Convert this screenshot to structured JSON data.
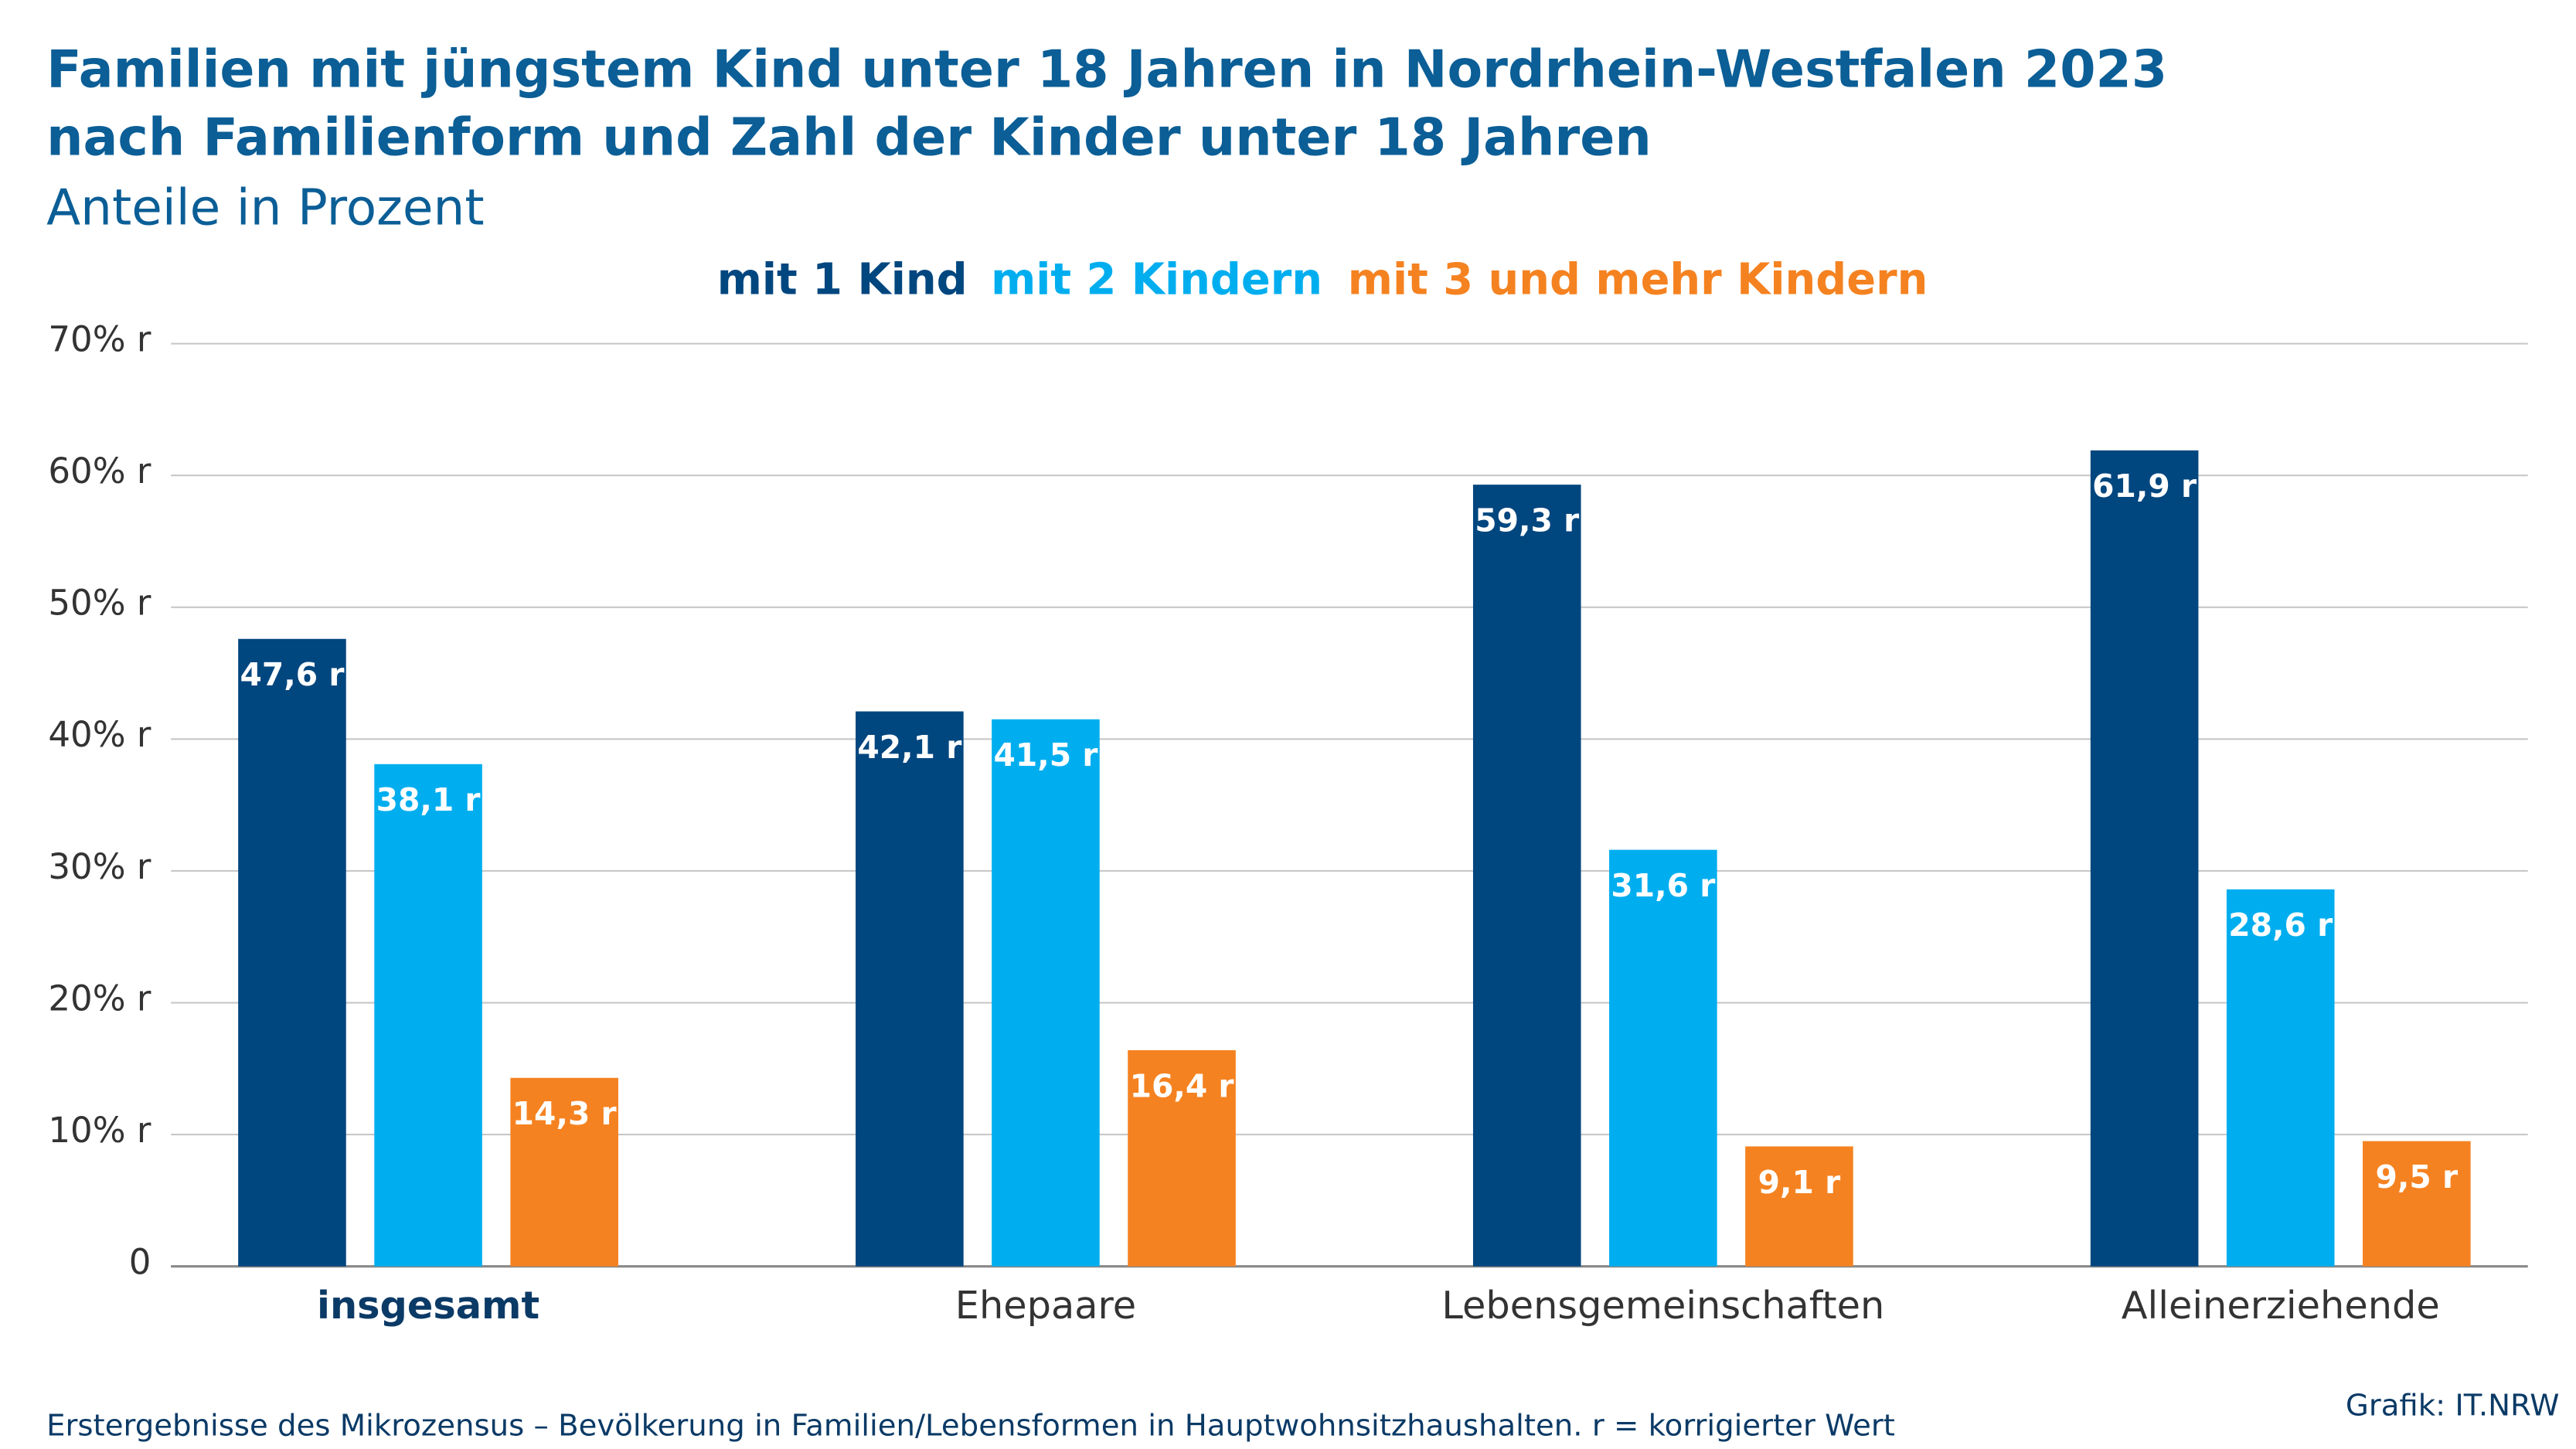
{
  "chart_data": {
    "type": "bar",
    "title": [
      "Familien mit jüngstem Kind unter 18 Jahren in Nordrhein-Westfalen 2023",
      "nach Familienform und Zahl der Kinder unter 18 Jahren"
    ],
    "subtitle": "Anteile in Prozent",
    "categories": [
      "insgesamt",
      "Ehepaare",
      "Lebensgemeinschaften",
      "Alleinerziehende"
    ],
    "series": [
      {
        "name": "mit 1 Kind",
        "color": "#00467f",
        "values": [
          47.6,
          42.1,
          59.3,
          61.9
        ],
        "value_labels": [
          "47,6 r",
          "42,1 r",
          "59,3 r",
          "61,9 r"
        ]
      },
      {
        "name": "mit 2 Kindern",
        "color": "#00aeef",
        "values": [
          38.1,
          41.5,
          31.6,
          28.6
        ],
        "value_labels": [
          "38,1 r",
          "41,5 r",
          "31,6 r",
          "28,6 r"
        ]
      },
      {
        "name": "mit 3 und mehr Kindern",
        "color": "#f58220",
        "values": [
          14.3,
          16.4,
          9.1,
          9.5
        ],
        "value_labels": [
          "14,3 r",
          "16,4 r",
          "9,1 r",
          "9,5 r"
        ]
      }
    ],
    "ylim": [
      0,
      70
    ],
    "yticks": [
      0,
      {
        "value": 10,
        "label": "10% r"
      },
      {
        "value": 20,
        "label": "20% r"
      },
      {
        "value": 30,
        "label": "30% r"
      },
      {
        "value": 40,
        "label": "40% r"
      },
      {
        "value": 50,
        "label": "50% r"
      },
      {
        "value": 60,
        "label": "60% r"
      },
      {
        "value": 70,
        "label": "70% r"
      }
    ],
    "grid": true,
    "legend": "top",
    "footnote": "Erstergebnisse des Mikrozensus – Bevölkerung in Familien/Lebensformen in Hauptwohnsitzhaushalten. r = korrigierter Wert",
    "source": "Grafik: IT.NRW"
  }
}
